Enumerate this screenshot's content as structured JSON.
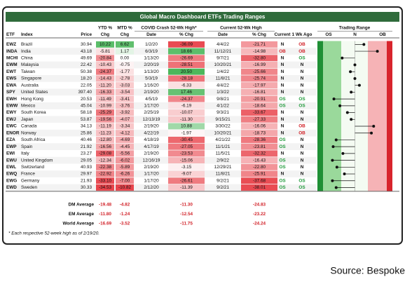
{
  "header": {
    "title": "Global Macro Dashboard ETFs Trading Ranges"
  },
  "columns_top": {
    "ytd": "YTD %",
    "mtd": "MTD %",
    "covid": "COVID Crash 52-Wk High*",
    "current": "Current 52-Wk High",
    "range": "Trading Range"
  },
  "columns": {
    "etf": "ETF",
    "index": "Index",
    "price": "Price",
    "ytd": "Chg",
    "mtd": "Chg",
    "covid_date": "Date",
    "covid_chg": "% Chg",
    "cur_date": "Date",
    "cur_chg": "% Chg",
    "current": "Current",
    "week_ago": "1 Wk Ago",
    "os": "OS",
    "n": "N",
    "ob": "OB"
  },
  "rows": [
    {
      "etf": "EWZ",
      "index": "Brazil",
      "price": "30.94",
      "ytd": "10.22",
      "mtd": "6.62",
      "covid_date": "1/2/20",
      "covid_chg": "-36.09",
      "cur_date": "4/4/22",
      "cur_chg": "-21.71",
      "current": "N",
      "week_ago": "OB",
      "range": 62
    },
    {
      "etf": "INDA",
      "index": "India",
      "price": "43.18",
      "ytd": "-5.81",
      "mtd": "1.17",
      "covid_date": "6/3/19",
      "covid_chg": "18.66",
      "cur_date": "11/12/21",
      "cur_chg": "-14.98",
      "current": "OB",
      "week_ago": "OB",
      "range": 80
    },
    {
      "etf": "MCHI",
      "index": "China",
      "price": "49.69",
      "ytd": "-20.84",
      "mtd": "0.00",
      "covid_date": "1/13/20",
      "covid_chg": "-26.69",
      "cur_date": "9/7/21",
      "cur_chg": "-32.80",
      "current": "N",
      "week_ago": "OS",
      "range": 33
    },
    {
      "etf": "EWM",
      "index": "Malaysia",
      "price": "22.42",
      "ytd": "-10.43",
      "mtd": "-0.75",
      "covid_date": "2/20/19",
      "covid_chg": "-28.51",
      "cur_date": "10/20/21",
      "cur_chg": "-16.99",
      "current": "N",
      "week_ago": "N",
      "range": 50
    },
    {
      "etf": "EWT",
      "index": "Taiwan",
      "price": "50.38",
      "ytd": "-24.37",
      "mtd": "-1.77",
      "covid_date": "1/13/20",
      "covid_chg": "20.50",
      "cur_date": "1/4/22",
      "cur_chg": "-25.66",
      "current": "N",
      "week_ago": "N",
      "range": 44
    },
    {
      "etf": "EWS",
      "index": "Singapore",
      "price": "18.20",
      "ytd": "-14.43",
      "mtd": "-2.78",
      "covid_date": "5/3/19",
      "covid_chg": "-28.18",
      "cur_date": "11/8/21",
      "cur_chg": "-25.74",
      "current": "N",
      "week_ago": "N",
      "range": 50
    },
    {
      "etf": "EWA",
      "index": "Australia",
      "price": "22.05",
      "ytd": "-11.20",
      "mtd": "-3.03",
      "covid_date": "1/16/20",
      "covid_chg": "-6.33",
      "cur_date": "4/4/22",
      "cur_chg": "-17.97",
      "current": "N",
      "week_ago": "N",
      "range": 56
    },
    {
      "etf": "SPY",
      "index": "United States",
      "price": "397.40",
      "ytd": "-16.33",
      "mtd": "-3.54",
      "covid_date": "2/19/20",
      "covid_chg": "17.46",
      "cur_date": "1/3/22",
      "cur_chg": "-16.81",
      "current": "N",
      "week_ago": "N",
      "range": 45
    },
    {
      "etf": "EWH",
      "index": "Hong Kong",
      "price": "20.53",
      "ytd": "-11.49",
      "mtd": "-3.41",
      "covid_date": "4/5/19",
      "covid_chg": "-24.37",
      "cur_date": "9/8/21",
      "cur_chg": "-20.91",
      "current": "OS",
      "week_ago": "OS",
      "range": 22
    },
    {
      "etf": "EWW",
      "index": "Mexico",
      "price": "45.04",
      "ytd": "-10.99",
      "mtd": "-3.76",
      "covid_date": "1/17/20",
      "covid_chg": "-6.19",
      "cur_date": "4/1/22",
      "cur_chg": "-18.64",
      "current": "OS",
      "week_ago": "OS",
      "range": 30
    },
    {
      "etf": "EWY",
      "index": "South Korea",
      "price": "58.18",
      "ytd": "-25.29",
      "mtd": "-3.92",
      "covid_date": "2/25/19",
      "covid_chg": "-10.07",
      "cur_date": "9/3/21",
      "cur_chg": "-33.67",
      "current": "N",
      "week_ago": "N",
      "range": 40
    },
    {
      "etf": "EWJ",
      "index": "Japan",
      "price": "53.87",
      "ytd": "-19.56",
      "mtd": "-4.07",
      "covid_date": "12/13/19",
      "covid_chg": "-11.30",
      "cur_date": "9/15/21",
      "cur_chg": "-27.33",
      "current": "N",
      "week_ago": "N",
      "range": 45
    },
    {
      "etf": "EWC",
      "index": "Canada",
      "price": "34.13",
      "ytd": "-11.19",
      "mtd": "-3.34",
      "covid_date": "2/19/20",
      "covid_chg": "10.88",
      "cur_date": "3/30/22",
      "cur_chg": "-16.06",
      "current": "N",
      "week_ago": "OB",
      "range": 75
    },
    {
      "etf": "ENOR",
      "index": "Norway",
      "price": "25.86",
      "ytd": "-11.23",
      "mtd": "-4.12",
      "covid_date": "4/22/19",
      "covid_chg": "-1.97",
      "cur_date": "10/20/21",
      "cur_chg": "-18.73",
      "current": "N",
      "week_ago": "OB",
      "range": 72
    },
    {
      "etf": "EZA",
      "index": "South Africa",
      "price": "40.46",
      "ytd": "-12.80",
      "mtd": "-4.69",
      "covid_date": "4/18/19",
      "covid_chg": "-30.45",
      "cur_date": "4/21/22",
      "cur_chg": "-28.36",
      "current": "OS",
      "week_ago": "N",
      "range": 25
    },
    {
      "etf": "EWP",
      "index": "Spain",
      "price": "21.92",
      "ytd": "-16.56",
      "mtd": "-4.45",
      "covid_date": "4/17/19",
      "covid_chg": "-27.05",
      "cur_date": "11/1/21",
      "cur_chg": "-23.81",
      "current": "OS",
      "week_ago": "N",
      "range": 21
    },
    {
      "etf": "EWI",
      "index": "Italy",
      "price": "23.27",
      "ytd": "-29.08",
      "mtd": "-5.56",
      "covid_date": "2/19/20",
      "covid_chg": "-23.53",
      "cur_date": "11/5/21",
      "cur_chg": "-32.32",
      "current": "N",
      "week_ago": "N",
      "range": 34
    },
    {
      "etf": "EWU",
      "index": "United Kingdom",
      "price": "29.05",
      "ytd": "-12.34",
      "mtd": "-6.02",
      "covid_date": "12/16/19",
      "covid_chg": "-15.06",
      "cur_date": "2/9/22",
      "cur_chg": "-16.43",
      "current": "OS",
      "week_ago": "N",
      "range": 20
    },
    {
      "etf": "EWL",
      "index": "Switzerland",
      "price": "40.93",
      "ytd": "-22.38",
      "mtd": "-5.89",
      "covid_date": "2/19/20",
      "covid_chg": "-3.15",
      "cur_date": "12/29/21",
      "cur_chg": "-22.80",
      "current": "OS",
      "week_ago": "N",
      "range": 26
    },
    {
      "etf": "EWQ",
      "index": "France",
      "price": "29.97",
      "ytd": "-22.92",
      "mtd": "-6.26",
      "covid_date": "1/17/20",
      "covid_chg": "-9.07",
      "cur_date": "11/8/21",
      "cur_chg": "-25.91",
      "current": "N",
      "week_ago": "N",
      "range": 36
    },
    {
      "etf": "EWG",
      "index": "Germany",
      "price": "21.93",
      "ytd": "-33.10",
      "mtd": "-7.00",
      "covid_date": "1/17/20",
      "covid_chg": "-26.61",
      "cur_date": "9/2/21",
      "cur_chg": "-37.68",
      "current": "OS",
      "week_ago": "OS",
      "range": 20
    },
    {
      "etf": "EWD",
      "index": "Sweden",
      "price": "30.33",
      "ytd": "-34.53",
      "mtd": "-10.82",
      "covid_date": "2/12/20",
      "covid_chg": "-11.39",
      "cur_date": "9/2/21",
      "cur_chg": "-38.01",
      "current": "OS",
      "week_ago": "OS",
      "range": 25
    }
  ],
  "averages": [
    {
      "label": "DM Average",
      "ytd": "-19.48",
      "mtd": "-4.82",
      "covid_chg": "-11.30",
      "cur_chg": "-24.83"
    },
    {
      "label": "EM Average",
      "ytd": "-11.80",
      "mtd": "-1.24",
      "covid_chg": "-12.54",
      "cur_chg": "-23.22"
    },
    {
      "label": "World Average",
      "ytd": "-16.69",
      "mtd": "-3.52",
      "covid_chg": "-11.75",
      "cur_chg": "-24.24"
    }
  ],
  "footnote": "* Each respective 52-week high as of 2/19/20.",
  "source": "Source: Bespoke"
}
